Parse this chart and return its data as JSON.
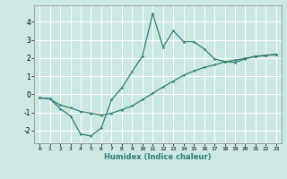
{
  "xlabel": "Humidex (Indice chaleur)",
  "background_color": "#cce8e4",
  "grid_color": "#ffffff",
  "line_color": "#2e7d6e",
  "xlim": [
    -0.5,
    23.5
  ],
  "ylim": [
    -2.7,
    4.9
  ],
  "yticks": [
    -2,
    -1,
    0,
    1,
    2,
    3,
    4
  ],
  "xticks": [
    0,
    1,
    2,
    3,
    4,
    5,
    6,
    7,
    8,
    9,
    10,
    11,
    12,
    13,
    14,
    15,
    16,
    17,
    18,
    19,
    20,
    21,
    22,
    23
  ],
  "line1_x": [
    0,
    1,
    2,
    3,
    4,
    5,
    6,
    7,
    8,
    9,
    10,
    11,
    12,
    13,
    14,
    15,
    16,
    17,
    18,
    19,
    20,
    21,
    22,
    23
  ],
  "line1_y": [
    -0.2,
    -0.25,
    -0.8,
    -1.2,
    -2.2,
    -2.3,
    -1.85,
    -0.3,
    0.35,
    1.25,
    2.1,
    4.45,
    2.6,
    3.5,
    2.9,
    2.9,
    2.5,
    1.95,
    1.8,
    1.75,
    1.95,
    2.1,
    2.15,
    2.2
  ],
  "line2_x": [
    0,
    1,
    2,
    3,
    4,
    5,
    6,
    7,
    8,
    9,
    10,
    11,
    12,
    13,
    14,
    15,
    16,
    17,
    18,
    19,
    20,
    21,
    22,
    23
  ],
  "line2_y": [
    -0.2,
    -0.25,
    -0.6,
    -0.75,
    -0.95,
    -1.05,
    -1.15,
    -1.05,
    -0.85,
    -0.65,
    -0.3,
    0.05,
    0.4,
    0.72,
    1.05,
    1.28,
    1.48,
    1.62,
    1.78,
    1.88,
    1.98,
    2.08,
    2.13,
    2.2
  ]
}
